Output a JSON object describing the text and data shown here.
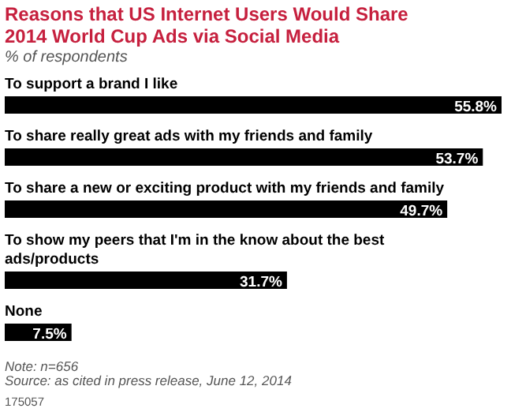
{
  "chart_data": {
    "type": "bar",
    "orientation": "horizontal",
    "title": "Reasons that US Internet Users Would Share 2014 World Cup Ads via Social Media",
    "subtitle": "% of respondents",
    "categories": [
      "To support a brand I like",
      "To share really great ads with my friends and family",
      "To share a new or exciting product with my friends and family",
      "To show my peers that I'm in the know about the best ads/products",
      "None"
    ],
    "values": [
      55.8,
      53.7,
      49.7,
      31.7,
      7.5
    ],
    "color": "#000000",
    "value_labels": [
      "55.8%",
      "53.7%",
      "49.7%",
      "31.7%",
      "7.5%"
    ],
    "annotations": [
      "Note: n=656",
      "Source: as cited in press release, June 12, 2014",
      "175057"
    ]
  }
}
